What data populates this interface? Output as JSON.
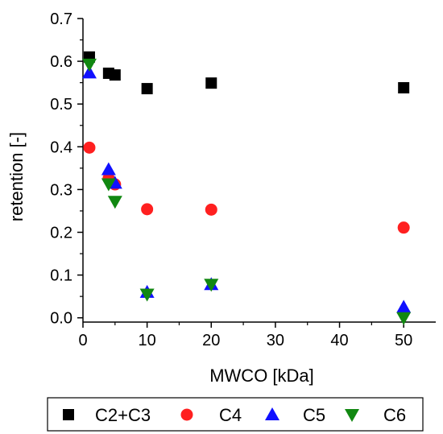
{
  "chart_data": {
    "type": "scatter",
    "xlabel": "MWCO [kDa]",
    "ylabel": "retention [-]",
    "xlim": [
      0,
      55
    ],
    "ylim": [
      -0.01,
      0.7
    ],
    "x_ticks": [
      "0",
      "10",
      "20",
      "30",
      "40",
      "50"
    ],
    "y_ticks": [
      "0.0",
      "0.1",
      "0.2",
      "0.3",
      "0.4",
      "0.5",
      "0.6",
      "0.7"
    ],
    "grid": false,
    "legend_position": "bottom",
    "series": [
      {
        "name": "C2+C3",
        "marker": "square",
        "color": "#000000",
        "points": [
          [
            1,
            0.61
          ],
          [
            4,
            0.572
          ],
          [
            5,
            0.568
          ],
          [
            10,
            0.536
          ],
          [
            20,
            0.549
          ],
          [
            50,
            0.538
          ]
        ]
      },
      {
        "name": "C4",
        "marker": "circle",
        "color": "#ff2020",
        "points": [
          [
            1,
            0.398
          ],
          [
            4,
            0.326
          ],
          [
            5,
            0.312
          ],
          [
            10,
            0.254
          ],
          [
            20,
            0.253
          ],
          [
            50,
            0.211
          ]
        ]
      },
      {
        "name": "C5",
        "marker": "triangle-up",
        "color": "#1010ff",
        "points": [
          [
            1,
            0.573
          ],
          [
            4,
            0.347
          ],
          [
            5,
            0.315
          ],
          [
            10,
            0.06
          ],
          [
            20,
            0.078
          ],
          [
            50,
            0.025
          ]
        ]
      },
      {
        "name": "C6",
        "marker": "triangle-down",
        "color": "#118811",
        "points": [
          [
            1,
            0.593
          ],
          [
            4,
            0.313
          ],
          [
            5,
            0.272
          ],
          [
            10,
            0.055
          ],
          [
            20,
            0.078
          ],
          [
            50,
            0.0
          ]
        ]
      }
    ]
  }
}
